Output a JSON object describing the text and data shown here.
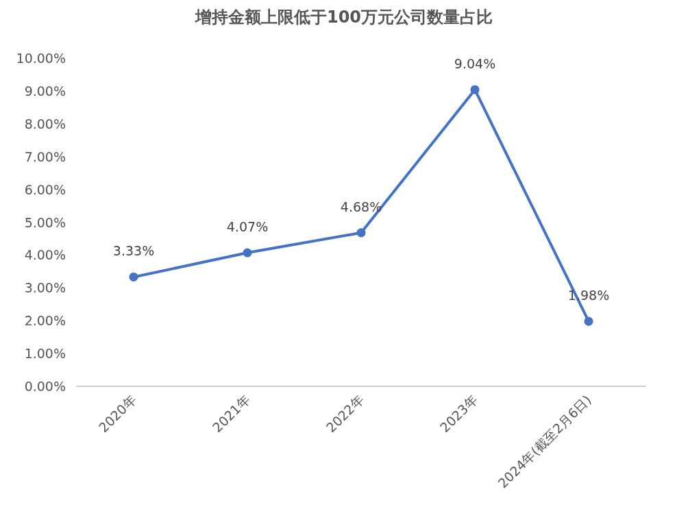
{
  "chart_data": {
    "type": "line",
    "title": "增持金额上限低于100万元公司数量占比",
    "categories": [
      "2020年",
      "2021年",
      "2022年",
      "2023年",
      "2024年(截至2月6日)"
    ],
    "series": [
      {
        "color": "#4472c4",
        "values": [
          3.33,
          4.07,
          4.68,
          9.04,
          1.98
        ],
        "value_labels": [
          "3.33%",
          "4.07%",
          "4.68%",
          "9.04%",
          "1.98%"
        ]
      }
    ],
    "ylim": [
      0,
      10
    ],
    "yticks": [
      {
        "value": 0,
        "label": "0.00%"
      },
      {
        "value": 1,
        "label": "1.00%"
      },
      {
        "value": 2,
        "label": "2.00%"
      },
      {
        "value": 3,
        "label": "3.00%"
      },
      {
        "value": 4,
        "label": "4.00%"
      },
      {
        "value": 5,
        "label": "5.00%"
      },
      {
        "value": 6,
        "label": "6.00%"
      },
      {
        "value": 7,
        "label": "7.00%"
      },
      {
        "value": 8,
        "label": "8.00%"
      },
      {
        "value": 9,
        "label": "9.00%"
      },
      {
        "value": 10,
        "label": "10.00%"
      }
    ],
    "grid": false,
    "marker": "circle",
    "line_style": "solid"
  }
}
